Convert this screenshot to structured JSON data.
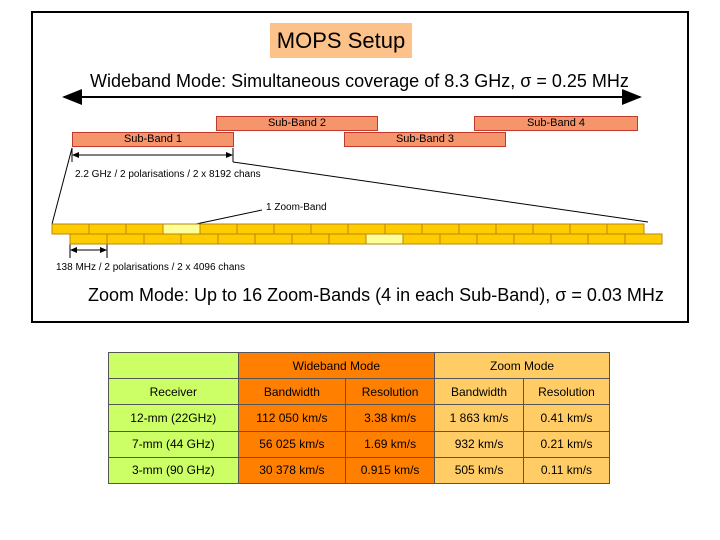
{
  "title": "MOPS Setup",
  "wideband_title": "Wideband Mode: Simultaneous coverage of 8.3 GHz, σ = 0.25 MHz",
  "sub_bands": [
    "Sub-Band 1",
    "Sub-Band 2",
    "Sub-Band 3",
    "Sub-Band 4"
  ],
  "subband_annotation": "2.2 GHz / 2 polarisations / 2 x 8192 chans",
  "zoomband_label": "1 Zoom-Band",
  "zoomband_annotation": "138 MHz / 2 polarisations / 2 x 4096 chans",
  "zoom_title": "Zoom Mode: Up to 16 Zoom-Bands (4 in each Sub-Band), σ = 0.03 MHz",
  "colors": {
    "subband_fill": "#f4956b",
    "zoom_fill": "#ffcc00",
    "zoom_highlight": "#ffff99",
    "wideband_col": "#ff7f00",
    "zoom_col": "#ffcc66",
    "receiver_col": "#ccff66"
  },
  "table": {
    "group_wideband": "Wideband Mode",
    "group_zoom": "Zoom Mode",
    "headers": [
      "Receiver",
      "Bandwidth",
      "Resolution",
      "Bandwidth",
      "Resolution"
    ],
    "rows": [
      [
        "12-mm (22GHz)",
        "112 050 km/s",
        "3.38 km/s",
        "1 863 km/s",
        "0.41 km/s"
      ],
      [
        "7-mm (44 GHz)",
        "56 025 km/s",
        "1.69 km/s",
        "932 km/s",
        "0.21 km/s"
      ],
      [
        "3-mm (90 GHz)",
        "30 378 km/s",
        "0.915 km/s",
        "505 km/s",
        "0.11 km/s"
      ]
    ]
  }
}
